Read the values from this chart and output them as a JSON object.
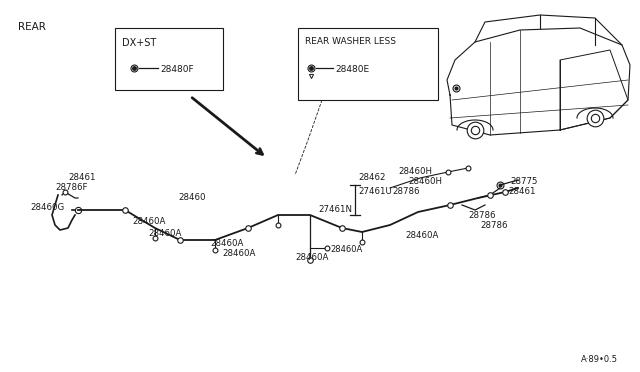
{
  "bg_color": "#ffffff",
  "line_color": "#1a1a1a",
  "text_color": "#1a1a1a",
  "title": "REAR",
  "footnote": "A·89•0.5",
  "box1_label": "DX+ST",
  "box1_part": "28480F",
  "box2_label": "REAR WASHER LESS",
  "box2_part": "28480E",
  "fig_w": 6.4,
  "fig_h": 3.72
}
